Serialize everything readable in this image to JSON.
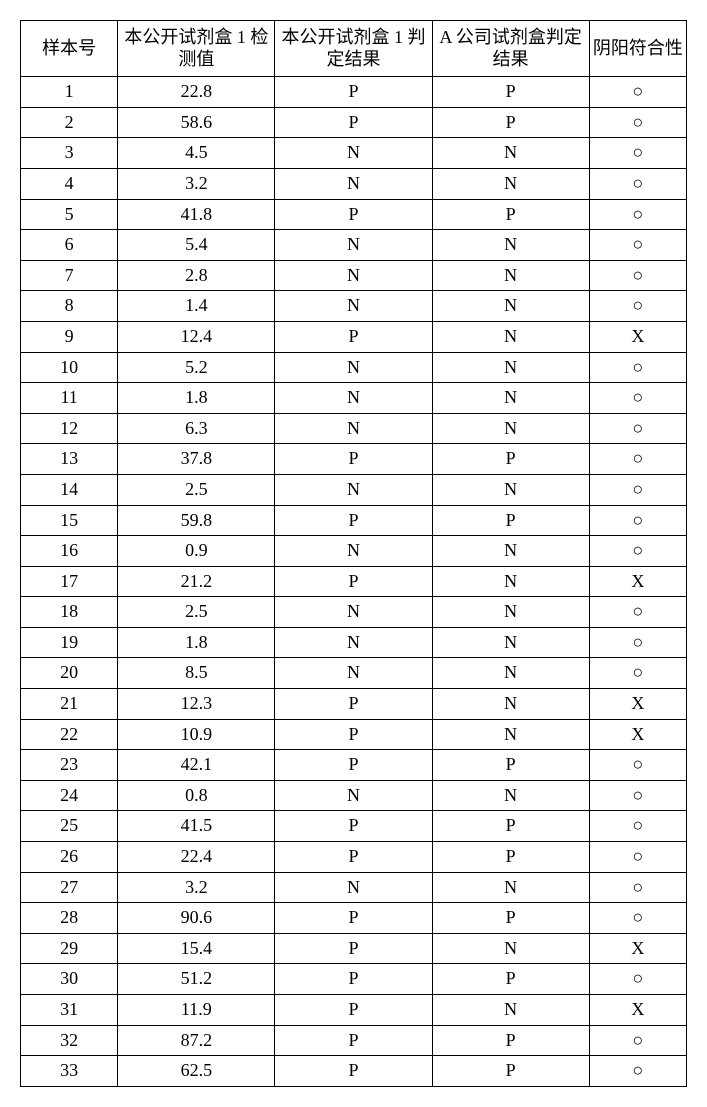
{
  "table": {
    "columns": [
      "样本号",
      "本公开试剂盒 1 检测值",
      "本公开试剂盒 1 判定结果",
      "A 公司试剂盒判定结果",
      "阴阳符合性"
    ],
    "rows": [
      [
        "1",
        "22.8",
        "P",
        "P",
        "○"
      ],
      [
        "2",
        "58.6",
        "P",
        "P",
        "○"
      ],
      [
        "3",
        "4.5",
        "N",
        "N",
        "○"
      ],
      [
        "4",
        "3.2",
        "N",
        "N",
        "○"
      ],
      [
        "5",
        "41.8",
        "P",
        "P",
        "○"
      ],
      [
        "6",
        "5.4",
        "N",
        "N",
        "○"
      ],
      [
        "7",
        "2.8",
        "N",
        "N",
        "○"
      ],
      [
        "8",
        "1.4",
        "N",
        "N",
        "○"
      ],
      [
        "9",
        "12.4",
        "P",
        "N",
        "X"
      ],
      [
        "10",
        "5.2",
        "N",
        "N",
        "○"
      ],
      [
        "11",
        "1.8",
        "N",
        "N",
        "○"
      ],
      [
        "12",
        "6.3",
        "N",
        "N",
        "○"
      ],
      [
        "13",
        "37.8",
        "P",
        "P",
        "○"
      ],
      [
        "14",
        "2.5",
        "N",
        "N",
        "○"
      ],
      [
        "15",
        "59.8",
        "P",
        "P",
        "○"
      ],
      [
        "16",
        "0.9",
        "N",
        "N",
        "○"
      ],
      [
        "17",
        "21.2",
        "P",
        "N",
        "X"
      ],
      [
        "18",
        "2.5",
        "N",
        "N",
        "○"
      ],
      [
        "19",
        "1.8",
        "N",
        "N",
        "○"
      ],
      [
        "20",
        "8.5",
        "N",
        "N",
        "○"
      ],
      [
        "21",
        "12.3",
        "P",
        "N",
        "X"
      ],
      [
        "22",
        "10.9",
        "P",
        "N",
        "X"
      ],
      [
        "23",
        "42.1",
        "P",
        "P",
        "○"
      ],
      [
        "24",
        "0.8",
        "N",
        "N",
        "○"
      ],
      [
        "25",
        "41.5",
        "P",
        "P",
        "○"
      ],
      [
        "26",
        "22.4",
        "P",
        "P",
        "○"
      ],
      [
        "27",
        "3.2",
        "N",
        "N",
        "○"
      ],
      [
        "28",
        "90.6",
        "P",
        "P",
        "○"
      ],
      [
        "29",
        "15.4",
        "P",
        "N",
        "X"
      ],
      [
        "30",
        "51.2",
        "P",
        "P",
        "○"
      ],
      [
        "31",
        "11.9",
        "P",
        "N",
        "X"
      ],
      [
        "32",
        "87.2",
        "P",
        "P",
        "○"
      ],
      [
        "33",
        "62.5",
        "P",
        "P",
        "○"
      ]
    ],
    "border_color": "#000000",
    "background_color": "#ffffff",
    "header_fontsize": 18,
    "cell_fontsize": 18
  }
}
